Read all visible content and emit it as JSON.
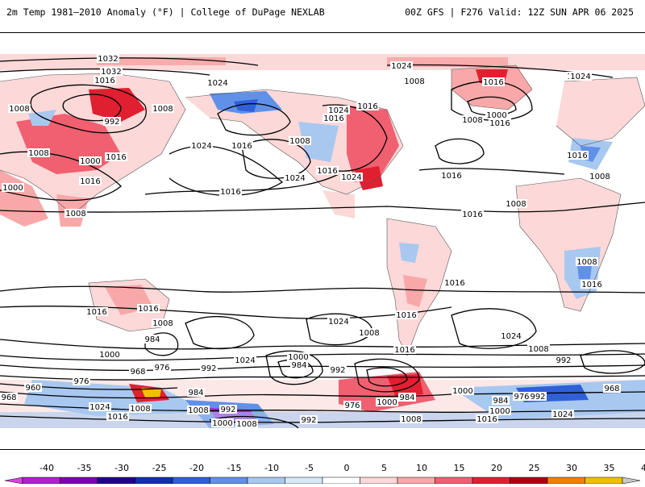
{
  "header": {
    "left_title": "2m Temp 1981–2010 Anomaly (°F) | College of DuPage NEXLAB",
    "right_title": "00Z GFS | F276 Valid: 12Z SUN APR 06 2025"
  },
  "colorbar": {
    "ticks": [
      "-40",
      "-35",
      "-30",
      "-25",
      "-20",
      "-15",
      "-10",
      "-5",
      "0",
      "5",
      "10",
      "15",
      "20",
      "25",
      "30",
      "35",
      "40"
    ],
    "colors": [
      "#e040e0",
      "#b020d0",
      "#8000b0",
      "#20008c",
      "#1030b0",
      "#3060d8",
      "#6090e8",
      "#a8c8f0",
      "#d8e8f8",
      "#ffffff",
      "#fcd8d8",
      "#f8a8a8",
      "#f06070",
      "#e02030",
      "#b00010",
      "#f08000",
      "#f0c000",
      "#c8c8c8"
    ]
  },
  "isobar_labels": [
    {
      "text": "1032"
    },
    {
      "text": "1032"
    },
    {
      "text": "1016"
    },
    {
      "text": "1024"
    },
    {
      "text": "1008"
    },
    {
      "text": "1008"
    },
    {
      "text": "992"
    },
    {
      "text": "1016"
    },
    {
      "text": "1000"
    },
    {
      "text": "1008"
    },
    {
      "text": "1024"
    },
    {
      "text": "1016"
    },
    {
      "text": "1008"
    },
    {
      "text": "1024"
    },
    {
      "text": "1016"
    },
    {
      "text": "1016"
    },
    {
      "text": "1000"
    },
    {
      "text": "1008"
    },
    {
      "text": "1016"
    },
    {
      "text": "1024"
    },
    {
      "text": "1016"
    },
    {
      "text": "1024"
    },
    {
      "text": "1024"
    },
    {
      "text": "1016"
    },
    {
      "text": "1016"
    },
    {
      "text": "1008"
    },
    {
      "text": "1000"
    },
    {
      "text": "1016"
    },
    {
      "text": "1008"
    },
    {
      "text": "1024"
    },
    {
      "text": "1016"
    },
    {
      "text": "1008"
    },
    {
      "text": "1016"
    },
    {
      "text": "1008"
    },
    {
      "text": "1008"
    },
    {
      "text": "1016"
    },
    {
      "text": "1016"
    },
    {
      "text": "1016"
    },
    {
      "text": "1016"
    },
    {
      "text": "1016"
    },
    {
      "text": "1024"
    },
    {
      "text": "1008"
    },
    {
      "text": "984"
    },
    {
      "text": "1000"
    },
    {
      "text": "976"
    },
    {
      "text": "968"
    },
    {
      "text": "960"
    },
    {
      "text": "976"
    },
    {
      "text": "984"
    },
    {
      "text": "1024"
    },
    {
      "text": "1008"
    },
    {
      "text": "1016"
    },
    {
      "text": "992"
    },
    {
      "text": "1024"
    },
    {
      "text": "1000"
    },
    {
      "text": "984"
    },
    {
      "text": "992"
    },
    {
      "text": "976"
    },
    {
      "text": "1000"
    },
    {
      "text": "984"
    },
    {
      "text": "1008"
    },
    {
      "text": "1008"
    },
    {
      "text": "992"
    },
    {
      "text": "1016"
    },
    {
      "text": "1000"
    },
    {
      "text": "1024"
    },
    {
      "text": "1008"
    },
    {
      "text": "992"
    },
    {
      "text": "968"
    },
    {
      "text": "976"
    },
    {
      "text": "992"
    },
    {
      "text": "984"
    },
    {
      "text": "1000"
    },
    {
      "text": "1016"
    },
    {
      "text": "1024"
    },
    {
      "text": "1024"
    },
    {
      "text": "1016"
    },
    {
      "text": "968"
    },
    {
      "text": "1000"
    },
    {
      "text": "1008"
    },
    {
      "text": "992"
    },
    {
      "text": "1008"
    }
  ]
}
